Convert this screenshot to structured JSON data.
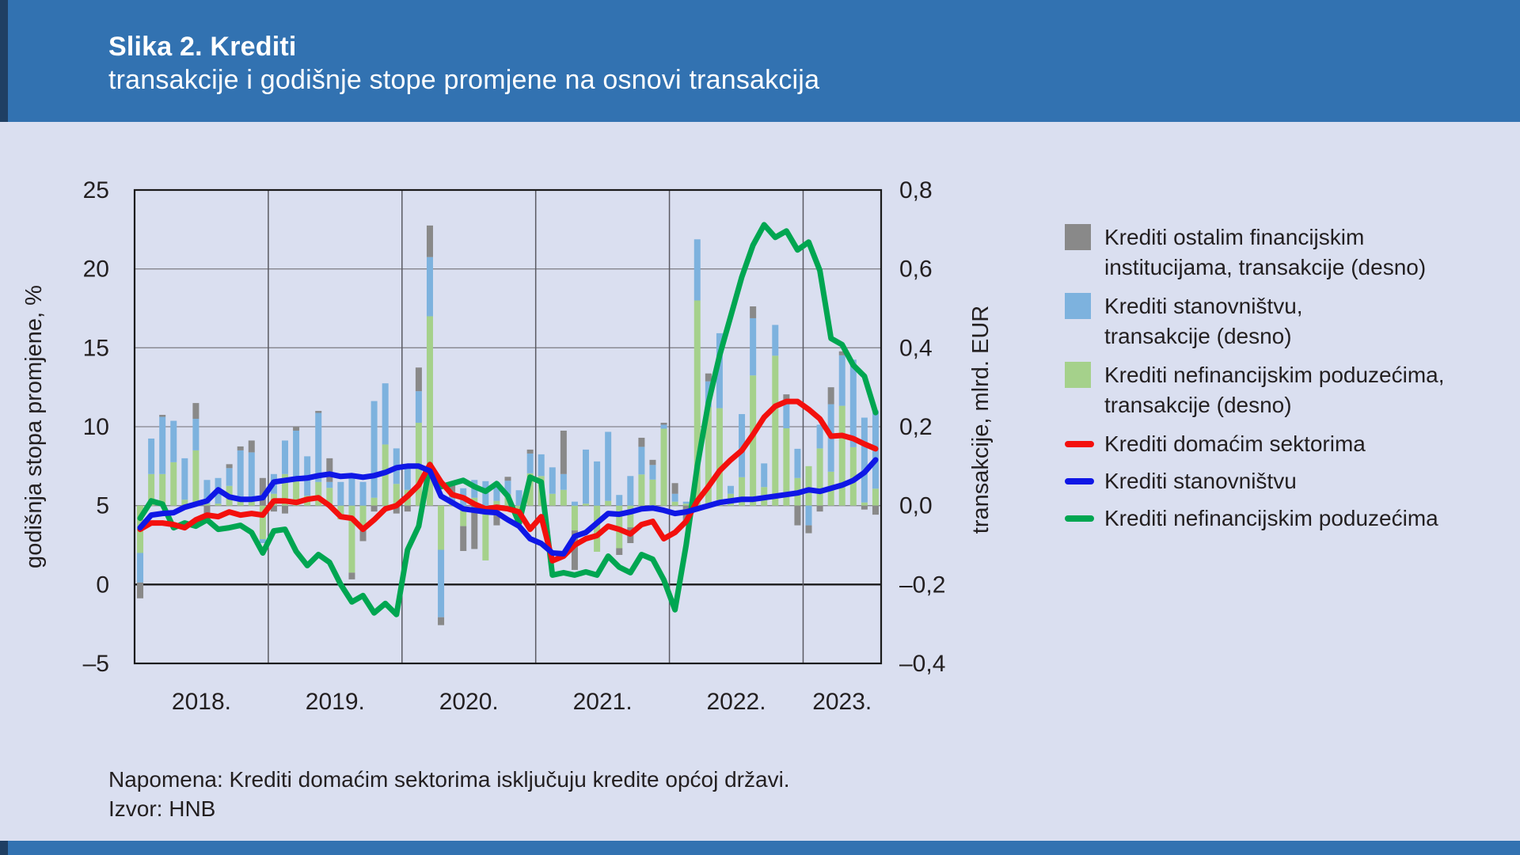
{
  "header": {
    "title": "Slika 2. Krediti",
    "subtitle": "transakcije i godišnje stope promjene na osnovi transakcija"
  },
  "notes": {
    "napomena": "Napomena: Krediti domaćim sektorima isključuju kredite općoj državi.",
    "izvor": "Izvor: HNB"
  },
  "colors": {
    "banner_blue": "#3272b1",
    "banner_edge": "#1f3f63",
    "background": "#dadff0",
    "bar_gray": "#898989",
    "bar_blue": "#7db2de",
    "bar_green": "#a5d18b",
    "line_red": "#f3100d",
    "line_blue": "#0f17e6",
    "line_green": "#00a651",
    "grid": "#85858d",
    "year_grid": "#5a5a62",
    "border": "#1a1a1a",
    "text": "#231f20"
  },
  "legend": {
    "items": [
      {
        "swatch": "square",
        "color_key": "bar_gray",
        "line1": "Krediti ostalim financijskim",
        "line2": "institucijama, transakcije (desno)"
      },
      {
        "swatch": "square",
        "color_key": "bar_blue",
        "line1": "Krediti stanovništvu,",
        "line2": "transakcije (desno)"
      },
      {
        "swatch": "square",
        "color_key": "bar_green",
        "line1": "Krediti nefinancijskim poduzećima,",
        "line2": "transakcije (desno)"
      },
      {
        "swatch": "line",
        "color_key": "line_red",
        "line1": "Krediti domaćim sektorima",
        "line2": ""
      },
      {
        "swatch": "line",
        "color_key": "line_blue",
        "line1": "Krediti stanovništvu",
        "line2": ""
      },
      {
        "swatch": "line",
        "color_key": "line_green",
        "line1": "Krediti nefinancijskim poduzećima",
        "line2": ""
      }
    ]
  },
  "chart_data": {
    "type": "combo: monthly stacked bars (right axis) + lines (left axis)",
    "start_month": "2018-01",
    "months": 67,
    "left_axis": {
      "label": "godišnja stopa promjene, %",
      "range": [
        -5,
        25
      ],
      "tick_values": [
        25,
        20,
        15,
        10,
        5,
        0,
        -5
      ],
      "tick_labels": [
        "25",
        "20",
        "15",
        "10",
        "5",
        "0",
        "–5"
      ]
    },
    "right_axis": {
      "label": "transakcije, mlrd. EUR",
      "range": [
        -0.4,
        0.8
      ],
      "tick_values": [
        0.8,
        0.6,
        0.4,
        0.2,
        0.0,
        -0.2,
        -0.4
      ],
      "tick_labels": [
        "0,8",
        "0,6",
        "0,4",
        "0,2",
        "0,0",
        "–0,2",
        "–0,4"
      ]
    },
    "x_year_labels": [
      "2018.",
      "2019.",
      "2020.",
      "2021.",
      "2022.",
      "2023."
    ],
    "grid": "horizontal every 5pp, vertical at year boundaries",
    "legend_position": "right",
    "series": [
      {
        "name": "Krediti nefinancijskim poduzećima, transakcije (desno)",
        "type": "bar",
        "axis": "right",
        "color_key": "bar_green",
        "values": [
          -0.12,
          0.08,
          0.08,
          0.11,
          0.015,
          0.14,
          0.005,
          0.005,
          0.05,
          0.015,
          0.02,
          -0.085,
          0.03,
          0.08,
          0.065,
          0.025,
          0.06,
          0.045,
          -0.035,
          -0.17,
          -0.06,
          0.02,
          0.155,
          0.055,
          0.04,
          0.21,
          0.48,
          -0.112,
          0.012,
          -0.052,
          0.02,
          -0.139,
          0.012,
          0.029,
          -0.035,
          0.082,
          0.075,
          0.03,
          0.04,
          -0.063,
          0.005,
          -0.117,
          0.012,
          -0.108,
          -0.055,
          0.079,
          0.066,
          0.195,
          0.01,
          0.005,
          0.52,
          0.25,
          0.247,
          0.03,
          0.072,
          0.33,
          0.047,
          0.38,
          0.196,
          0.07,
          0.1,
          0.145,
          0.086,
          0.253,
          0.148,
          0.008,
          0.043
        ]
      },
      {
        "name": "Krediti stanovništvu, transakcije (desno)",
        "type": "bar",
        "axis": "right",
        "color_key": "bar_blue",
        "values": [
          -0.075,
          0.09,
          0.145,
          0.105,
          0.105,
          0.08,
          0.06,
          0.065,
          0.045,
          0.125,
          0.115,
          -0.01,
          0.05,
          0.085,
          0.125,
          0.1,
          0.175,
          0.015,
          0.06,
          0.07,
          0.06,
          0.245,
          0.155,
          0.09,
          0.06,
          0.08,
          0.15,
          -0.171,
          0.013,
          0.044,
          0.045,
          0.062,
          0.047,
          0.034,
          0.039,
          0.05,
          0.055,
          0.067,
          0.04,
          0.01,
          0.137,
          0.112,
          0.175,
          0.027,
          0.075,
          0.07,
          0.037,
          0.01,
          0.02,
          0.005,
          0.155,
          0.065,
          0.19,
          0.02,
          0.16,
          0.145,
          0.06,
          0.078,
          0.066,
          0.074,
          -0.05,
          0.06,
          0.171,
          0.128,
          0.222,
          0.215,
          0.198
        ]
      },
      {
        "name": "Krediti ostalim financijskim institucijama, transakcije (desno)",
        "type": "bar",
        "axis": "right",
        "color_key": "bar_gray",
        "values": [
          -0.04,
          0,
          0.005,
          0,
          0,
          0.04,
          -0.045,
          0,
          0.01,
          0.01,
          0.03,
          0.07,
          -0.015,
          -0.02,
          0.01,
          0,
          0.005,
          0.06,
          0,
          -0.017,
          -0.03,
          -0.015,
          0,
          -0.02,
          -0.015,
          0.06,
          0.08,
          -0.02,
          0.03,
          -0.063,
          -0.11,
          0,
          -0.05,
          0.01,
          -0.012,
          0.01,
          0,
          0,
          0.11,
          -0.1,
          0,
          0,
          0,
          -0.017,
          -0.04,
          0.023,
          0.013,
          0.005,
          0.027,
          -0.042,
          0,
          0.02,
          0,
          0,
          0,
          0.03,
          0,
          0,
          0.02,
          -0.05,
          -0.02,
          -0.015,
          0.043,
          0.01,
          0,
          -0.01,
          -0.023
        ]
      },
      {
        "name": "Krediti nefinancijskim poduzećima",
        "type": "line",
        "axis": "left",
        "color_key": "line_green",
        "values": [
          4.2,
          5.3,
          5.1,
          3.6,
          3.9,
          3.7,
          4.1,
          3.5,
          3.6,
          3.75,
          3.3,
          2.0,
          3.4,
          3.5,
          2.1,
          1.2,
          1.9,
          1.4,
          0.0,
          -1.1,
          -0.7,
          -1.8,
          -1.2,
          -1.9,
          2.2,
          3.7,
          7.6,
          6.2,
          6.4,
          6.6,
          6.2,
          5.9,
          6.4,
          5.6,
          3.9,
          6.8,
          6.5,
          0.6,
          0.75,
          0.6,
          0.8,
          0.6,
          1.8,
          1.1,
          0.75,
          1.9,
          1.6,
          0.3,
          -1.6,
          2.5,
          7.5,
          11.5,
          14.5,
          17.0,
          19.5,
          21.5,
          22.8,
          22.0,
          22.4,
          21.2,
          21.7,
          19.9,
          15.6,
          15.2,
          13.9,
          13.2,
          10.9
        ]
      },
      {
        "name": "Krediti domaćim sektorima",
        "type": "line",
        "axis": "left",
        "color_key": "line_red",
        "values": [
          3.5,
          3.9,
          3.9,
          3.8,
          3.6,
          4.1,
          4.4,
          4.3,
          4.6,
          4.4,
          4.5,
          4.4,
          5.3,
          5.3,
          5.2,
          5.4,
          5.5,
          5.0,
          4.3,
          4.2,
          3.5,
          4.1,
          4.8,
          5.0,
          5.6,
          6.3,
          7.6,
          6.5,
          5.7,
          5.5,
          5.1,
          4.8,
          4.9,
          4.8,
          4.6,
          3.5,
          4.3,
          1.5,
          1.8,
          2.5,
          2.9,
          3.1,
          3.7,
          3.5,
          3.2,
          3.8,
          4.0,
          2.9,
          3.3,
          4.0,
          5.3,
          6.2,
          7.2,
          7.9,
          8.5,
          9.5,
          10.6,
          11.3,
          11.6,
          11.6,
          11.1,
          10.5,
          9.4,
          9.45,
          9.25,
          8.9,
          8.6
        ]
      },
      {
        "name": "Krediti stanovništvu",
        "type": "line",
        "axis": "left",
        "color_key": "line_blue",
        "values": [
          3.6,
          4.4,
          4.5,
          4.55,
          4.9,
          5.1,
          5.3,
          6.0,
          5.55,
          5.4,
          5.4,
          5.5,
          6.5,
          6.6,
          6.7,
          6.75,
          6.9,
          7.0,
          6.85,
          6.9,
          6.8,
          6.9,
          7.1,
          7.4,
          7.5,
          7.5,
          7.2,
          5.6,
          5.2,
          4.8,
          4.7,
          4.6,
          4.55,
          4.1,
          3.7,
          2.9,
          2.6,
          2.0,
          1.95,
          3.05,
          3.3,
          3.9,
          4.5,
          4.45,
          4.6,
          4.8,
          4.85,
          4.7,
          4.5,
          4.6,
          4.8,
          5.0,
          5.2,
          5.3,
          5.4,
          5.4,
          5.5,
          5.6,
          5.7,
          5.8,
          6.0,
          5.9,
          6.1,
          6.3,
          6.6,
          7.1,
          7.9
        ]
      }
    ]
  }
}
